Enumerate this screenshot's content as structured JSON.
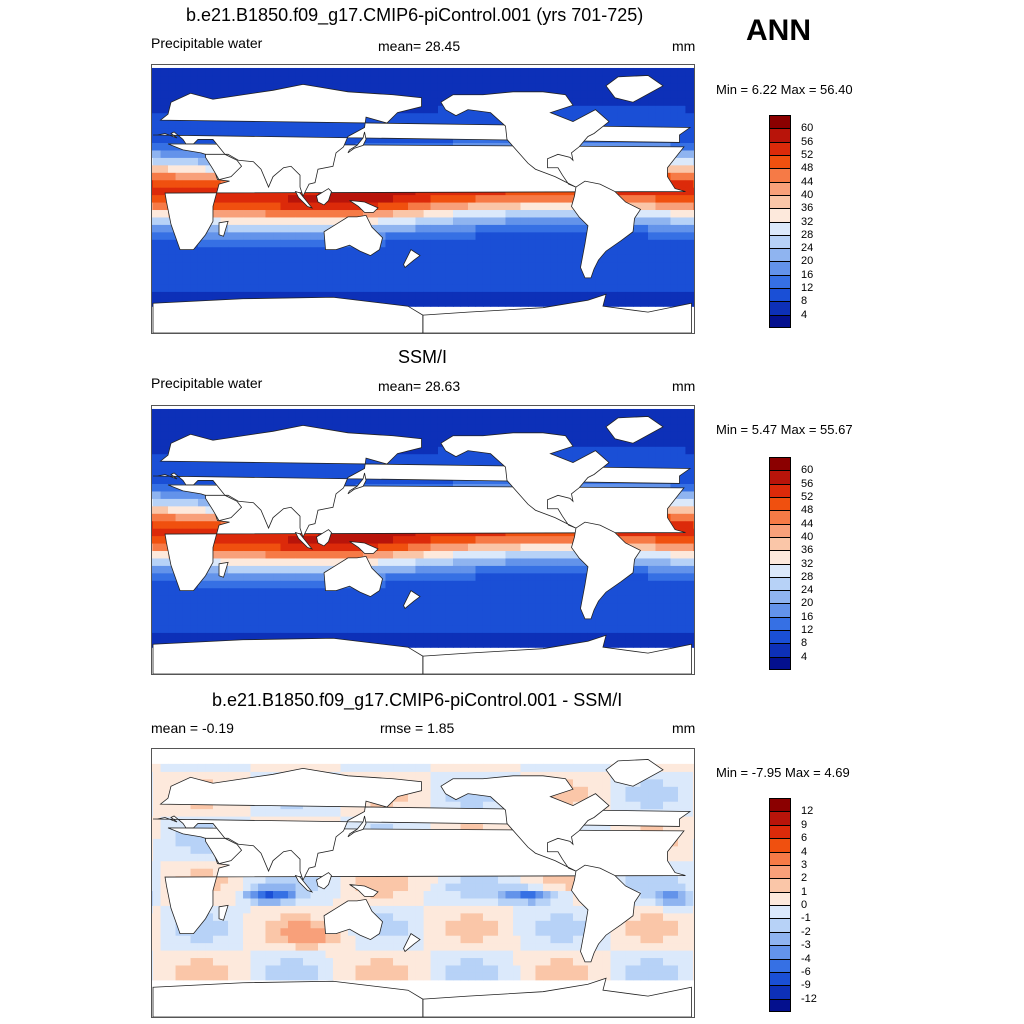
{
  "season": "ANN",
  "panels": [
    {
      "title": "b.e21.B1850.f09_g17.CMIP6-piControl.001 (yrs 701-725)",
      "left_label": "Precipitable water",
      "center_label": "mean=  28.45",
      "units": "mm",
      "minmax": "Min =   6.22 Max =  56.40",
      "map_kind": "field",
      "colorbar": {
        "labels": [
          "60",
          "56",
          "52",
          "48",
          "44",
          "40",
          "36",
          "32",
          "28",
          "24",
          "20",
          "16",
          "12",
          "8",
          "4"
        ],
        "colors": [
          "#8b0000",
          "#b8140a",
          "#dc2a0a",
          "#f0500f",
          "#f67a46",
          "#f8a07a",
          "#fac6a8",
          "#fde9dc",
          "#dbe9fb",
          "#b7d2f7",
          "#8fb4f0",
          "#6393ea",
          "#3670e4",
          "#1a4fd6",
          "#0d30b8",
          "#04108e"
        ]
      }
    },
    {
      "title": "SSM/I",
      "left_label": "Precipitable water",
      "center_label": "mean=  28.63",
      "units": "mm",
      "minmax": "Min =   5.47 Max =  55.67",
      "map_kind": "field",
      "colorbar": {
        "labels": [
          "60",
          "56",
          "52",
          "48",
          "44",
          "40",
          "36",
          "32",
          "28",
          "24",
          "20",
          "16",
          "12",
          "8",
          "4"
        ],
        "colors": [
          "#8b0000",
          "#b8140a",
          "#dc2a0a",
          "#f0500f",
          "#f67a46",
          "#f8a07a",
          "#fac6a8",
          "#fde9dc",
          "#dbe9fb",
          "#b7d2f7",
          "#8fb4f0",
          "#6393ea",
          "#3670e4",
          "#1a4fd6",
          "#0d30b8",
          "#04108e"
        ]
      }
    },
    {
      "title": "b.e21.B1850.f09_g17.CMIP6-piControl.001 - SSM/I",
      "left_label": "mean =  -0.19",
      "center_label": "rmse =   1.85",
      "units": "mm",
      "minmax": "Min =  -7.95 Max =   4.69",
      "map_kind": "diff",
      "colorbar": {
        "labels": [
          "12",
          "9",
          "6",
          "4",
          "3",
          "2",
          "1",
          "0",
          "-1",
          "-2",
          "-3",
          "-4",
          "-6",
          "-9",
          "-12"
        ],
        "colors": [
          "#8b0000",
          "#b8140a",
          "#dc2a0a",
          "#f0500f",
          "#f67a46",
          "#f8a07a",
          "#fac6a8",
          "#fde9dc",
          "#dbe9fb",
          "#b7d2f7",
          "#8fb4f0",
          "#6393ea",
          "#3670e4",
          "#1a4fd6",
          "#0d30b8",
          "#04108e"
        ]
      }
    }
  ]
}
